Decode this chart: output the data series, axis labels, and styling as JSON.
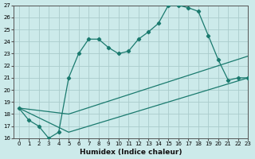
{
  "xlabel": "Humidex (Indice chaleur)",
  "background_color": "#cceaea",
  "grid_color": "#aacccc",
  "line_color": "#1a7a6e",
  "series1_x": [
    0,
    1,
    2,
    3,
    4,
    5,
    6,
    7,
    8,
    9,
    10,
    11,
    12,
    13,
    14,
    15,
    16,
    17,
    18,
    19,
    20,
    21,
    22,
    23
  ],
  "series1_y": [
    18.5,
    17.5,
    17.0,
    16.0,
    16.5,
    21.0,
    23.0,
    24.2,
    24.2,
    23.5,
    23.0,
    23.2,
    24.2,
    24.8,
    25.5,
    27.0,
    27.0,
    26.8,
    26.5,
    24.5,
    22.5,
    20.8,
    21.0,
    21.0
  ],
  "series2_x": [
    0,
    5,
    23
  ],
  "series2_y": [
    18.5,
    18.0,
    22.8
  ],
  "series3_x": [
    0,
    5,
    23
  ],
  "series3_y": [
    18.5,
    16.5,
    21.0
  ],
  "xlim": [
    -0.5,
    23
  ],
  "ylim": [
    16,
    27
  ],
  "xticks": [
    0,
    1,
    2,
    3,
    4,
    5,
    6,
    7,
    8,
    9,
    10,
    11,
    12,
    13,
    14,
    15,
    16,
    17,
    18,
    19,
    20,
    21,
    22,
    23
  ],
  "yticks": [
    16,
    17,
    18,
    19,
    20,
    21,
    22,
    23,
    24,
    25,
    26,
    27
  ],
  "xlabel_fontsize": 6.5,
  "tick_fontsize": 5
}
